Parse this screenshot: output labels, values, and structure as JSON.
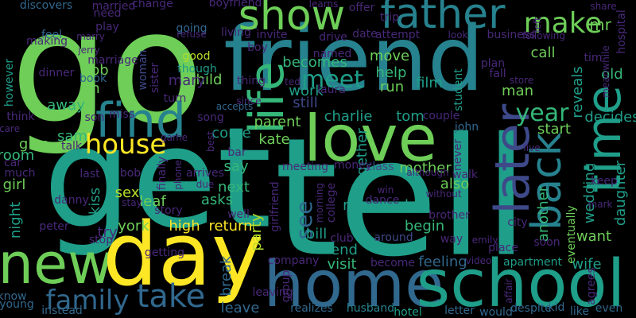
{
  "background": "#000000",
  "palette": {
    "yellow": "#fde725",
    "yellowgreen": "#b5de2b",
    "green": "#6ece58",
    "ltgreen": "#35b779",
    "teal": "#1f9e89",
    "cyan": "#26828e",
    "blue": "#31688e",
    "indigo": "#3e4989",
    "purple": "#482878",
    "dkpurple": "#440154"
  },
  "words": [
    {
      "text": "go"
    },
    {
      "text": "friend"
    },
    {
      "text": "get"
    },
    {
      "text": "tell"
    },
    {
      "text": "new"
    },
    {
      "text": "day"
    },
    {
      "text": "home"
    },
    {
      "text": "school"
    },
    {
      "text": "love"
    },
    {
      "text": "show"
    },
    {
      "text": "father"
    },
    {
      "text": "find"
    },
    {
      "text": "life"
    },
    {
      "text": "later"
    },
    {
      "text": "time"
    },
    {
      "text": "back"
    },
    {
      "text": "make"
    },
    {
      "text": "take"
    },
    {
      "text": "house"
    },
    {
      "text": "meet"
    },
    {
      "text": "family"
    },
    {
      "text": "year"
    },
    {
      "text": "see"
    },
    {
      "text": "work"
    },
    {
      "text": "mr"
    },
    {
      "text": "call"
    },
    {
      "text": "child"
    },
    {
      "text": "becomes"
    },
    {
      "text": "move"
    },
    {
      "text": "help"
    },
    {
      "text": "film"
    },
    {
      "text": "job"
    },
    {
      "text": "away"
    },
    {
      "text": "run"
    },
    {
      "text": "man"
    },
    {
      "text": "reveals"
    },
    {
      "text": "old"
    },
    {
      "text": "decides"
    },
    {
      "text": "parent"
    },
    {
      "text": "kate"
    },
    {
      "text": "charlie"
    },
    {
      "text": "tom"
    },
    {
      "text": "still"
    },
    {
      "text": "start"
    },
    {
      "text": "room"
    },
    {
      "text": "give"
    },
    {
      "text": "sam"
    },
    {
      "text": "come"
    },
    {
      "text": "say"
    },
    {
      "text": "next"
    },
    {
      "text": "asks"
    },
    {
      "text": "leaf"
    },
    {
      "text": "sex"
    },
    {
      "text": "york"
    },
    {
      "text": "high"
    },
    {
      "text": "return"
    },
    {
      "text": "party"
    },
    {
      "text": "bill"
    },
    {
      "text": "relationship"
    },
    {
      "text": "also"
    },
    {
      "text": "begin"
    },
    {
      "text": "end"
    },
    {
      "text": "visit"
    },
    {
      "text": "mother"
    },
    {
      "text": "together"
    },
    {
      "text": "another"
    },
    {
      "text": "want"
    },
    {
      "text": "wedding"
    },
    {
      "text": "daughter"
    },
    {
      "text": "eventually"
    },
    {
      "text": "girl"
    },
    {
      "text": "night"
    },
    {
      "text": "kiss"
    },
    {
      "text": "try"
    },
    {
      "text": "break"
    },
    {
      "text": "leave"
    },
    {
      "text": "feeling"
    },
    {
      "text": "apartment"
    },
    {
      "text": "wife"
    },
    {
      "text": "hotel"
    },
    {
      "text": "husband"
    },
    {
      "text": "realizes"
    },
    {
      "text": "letter"
    },
    {
      "text": "would"
    },
    {
      "text": "despite"
    },
    {
      "text": "kid"
    },
    {
      "text": "like"
    },
    {
      "text": "even"
    },
    {
      "text": "young"
    },
    {
      "text": "know"
    },
    {
      "text": "instead"
    },
    {
      "text": "however"
    },
    {
      "text": "student"
    },
    {
      "text": "john"
    },
    {
      "text": "woman"
    },
    {
      "text": "mary"
    },
    {
      "text": "sister"
    },
    {
      "text": "n"
    },
    {
      "text": "book"
    },
    {
      "text": "dinner"
    },
    {
      "text": "feel"
    },
    {
      "text": "making"
    },
    {
      "text": "discovers"
    },
    {
      "text": "married"
    },
    {
      "text": "change"
    },
    {
      "text": "boyfriend"
    },
    {
      "text": "learns"
    },
    {
      "text": "offer"
    },
    {
      "text": "trip"
    },
    {
      "text": "share"
    },
    {
      "text": "play"
    },
    {
      "text": "marry"
    },
    {
      "text": "need"
    },
    {
      "text": "going"
    },
    {
      "text": "refuse"
    },
    {
      "text": "living"
    },
    {
      "text": "invite"
    },
    {
      "text": "drive"
    },
    {
      "text": "date"
    },
    {
      "text": "attempt"
    },
    {
      "text": "look"
    },
    {
      "text": "business"
    },
    {
      "text": "following"
    },
    {
      "text": "hospital"
    },
    {
      "text": "meanwhile"
    },
    {
      "text": "left"
    },
    {
      "text": "plan"
    },
    {
      "text": "fall"
    },
    {
      "text": "store"
    },
    {
      "text": "tim"
    },
    {
      "text": "good"
    },
    {
      "text": "though"
    },
    {
      "text": "boy"
    },
    {
      "text": "named"
    },
    {
      "text": "ted"
    },
    {
      "text": "laura"
    },
    {
      "text": "thing"
    },
    {
      "text": "since"
    },
    {
      "text": "accepts"
    },
    {
      "text": "turn"
    },
    {
      "text": "son"
    },
    {
      "text": "miss"
    },
    {
      "text": "song"
    },
    {
      "text": "care"
    },
    {
      "text": "think"
    },
    {
      "text": "talk"
    },
    {
      "text": "game"
    },
    {
      "text": "best"
    },
    {
      "text": "bar"
    },
    {
      "text": "couple"
    },
    {
      "text": "never"
    },
    {
      "text": "live"
    },
    {
      "text": "car"
    },
    {
      "text": "much"
    },
    {
      "text": "last"
    },
    {
      "text": "bob"
    },
    {
      "text": "danny"
    },
    {
      "text": "stay"
    },
    {
      "text": "story"
    },
    {
      "text": "finally"
    },
    {
      "text": "phone"
    },
    {
      "text": "arrives"
    },
    {
      "text": "due"
    },
    {
      "text": "meeting"
    },
    {
      "text": "money"
    },
    {
      "text": "class"
    },
    {
      "text": "although"
    },
    {
      "text": "walk"
    },
    {
      "text": "keep"
    },
    {
      "text": "mark"
    },
    {
      "text": "without"
    },
    {
      "text": "brother"
    },
    {
      "text": "city"
    },
    {
      "text": "win"
    },
    {
      "text": "dance"
    },
    {
      "text": "well"
    },
    {
      "text": "girlfriend"
    },
    {
      "text": "morning"
    },
    {
      "text": "college"
    },
    {
      "text": "peter"
    },
    {
      "text": "stop"
    },
    {
      "text": "getting"
    },
    {
      "text": "club"
    },
    {
      "text": "around"
    },
    {
      "text": "way"
    },
    {
      "text": "emily"
    },
    {
      "text": "place"
    },
    {
      "text": "video"
    },
    {
      "text": "affair"
    },
    {
      "text": "agrees"
    },
    {
      "text": "soon"
    },
    {
      "text": "company"
    },
    {
      "text": "become"
    },
    {
      "text": "leaving"
    },
    {
      "text": "group"
    },
    {
      "text": "jerry"
    },
    {
      "text": "marriage"
    }
  ]
}
